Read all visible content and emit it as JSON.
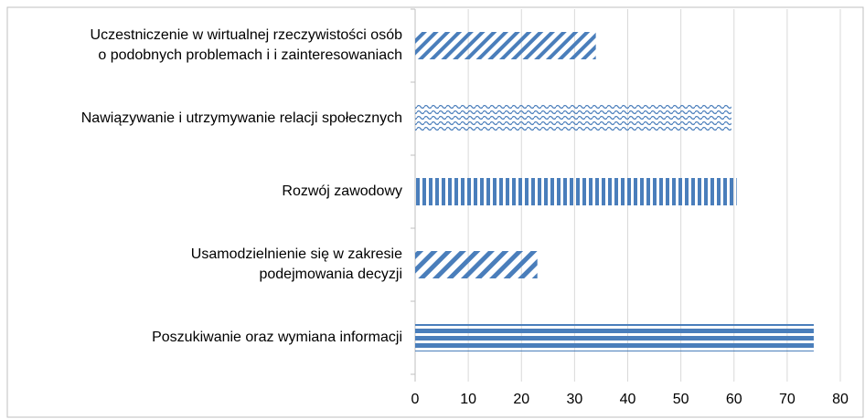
{
  "chart_data": {
    "type": "barh",
    "categories": [
      [
        "Uczestniczenie w wirtualnej rzeczywistości osób",
        "o podobnych problemach i i zainteresowaniach"
      ],
      [
        "Nawiązywanie i utrzymywanie relacji społecznych"
      ],
      [
        "Rozwój zawodowy"
      ],
      [
        "Usamodzielnienie się w zakresie",
        "podejmowania decyzji"
      ],
      [
        "Poszukiwanie oraz wymiana informacji"
      ]
    ],
    "values": [
      34,
      59.5,
      60.5,
      23,
      75
    ],
    "patterns": [
      "diagonal",
      "wave",
      "vertical",
      "diagonal-wide",
      "horizontal"
    ],
    "color": "#4a7ebb",
    "xlim": [
      0,
      80
    ],
    "xticks": [
      0,
      10,
      20,
      30,
      40,
      50,
      60,
      70,
      80
    ],
    "grid": true
  }
}
